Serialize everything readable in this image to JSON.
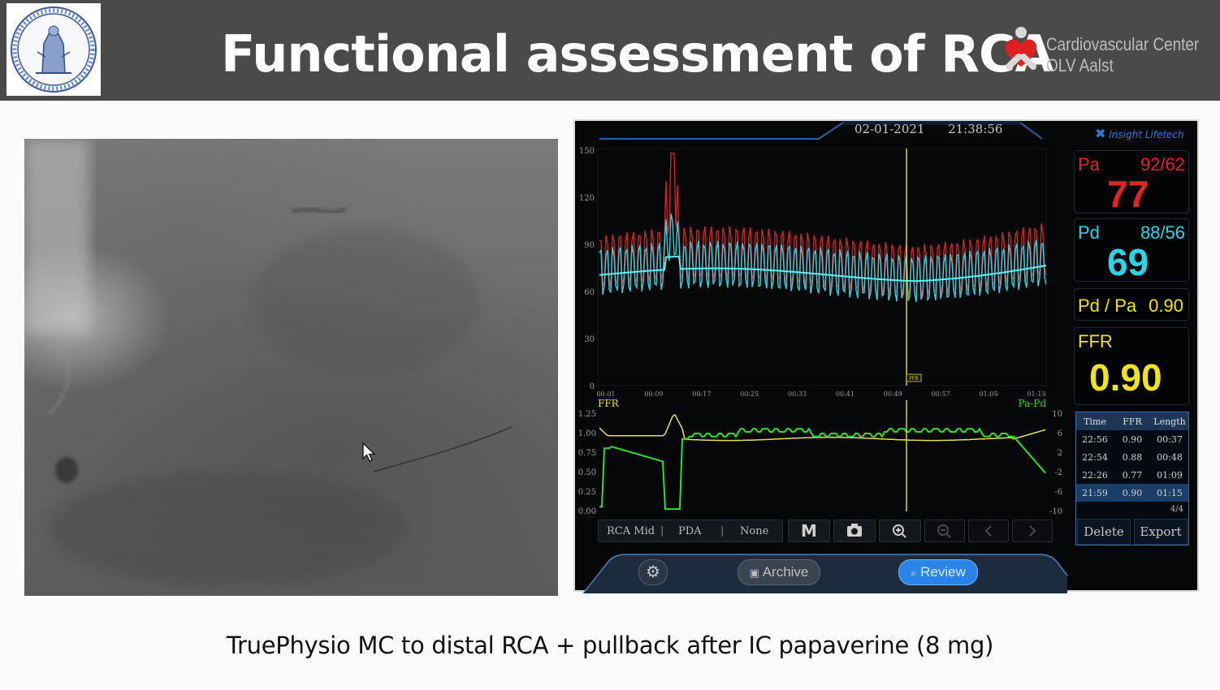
{
  "header": {
    "title": "Functional assessment of RCA",
    "brand_line1": "Cardiovascular Center",
    "brand_line2": "OLV Aalst"
  },
  "monitor": {
    "date": "02-01-2021",
    "time": "21:38:56",
    "vendor": "Insight Lifetech",
    "pa": {
      "label": "Pa",
      "systolic_diastolic": "92/62",
      "mean": "77",
      "color": "#e02424"
    },
    "pd": {
      "label": "Pd",
      "systolic_diastolic": "88/56",
      "mean": "69",
      "color": "#28d6e8"
    },
    "ratio": {
      "label": "Pd / Pa",
      "value": "0.90",
      "color": "#f2e21a"
    },
    "ffr": {
      "label": "FFR",
      "value": "0.90",
      "color": "#f2e21a"
    },
    "pressure_chart": {
      "y_ticks": [
        "150",
        "120",
        "90",
        "60",
        "30",
        "0"
      ],
      "x_ticks": [
        "00:01",
        "00:09",
        "00:17",
        "00:25",
        "00:33",
        "00:41",
        "00:49",
        "00:57",
        "01:05",
        "01:13"
      ],
      "marker_label": "FFR"
    },
    "ffr_chart": {
      "left_label": "FFR",
      "right_label": "Pa-Pd",
      "left_ticks": [
        "1.25",
        "1.00",
        "0.75",
        "0.50",
        "0.25",
        "0.00"
      ],
      "right_ticks": [
        "10",
        "6",
        "2",
        "-2",
        "-6",
        "-10"
      ]
    },
    "controls": {
      "seg1": "RCA Mid",
      "seg2": "PDA",
      "seg3": "None",
      "mark": "M"
    },
    "table": {
      "headers": [
        "Time",
        "FFR",
        "Length"
      ],
      "rows": [
        [
          "22:56",
          "0.90",
          "00:37"
        ],
        [
          "22:54",
          "0.88",
          "00:48"
        ],
        [
          "22:26",
          "0.77",
          "01:09"
        ],
        [
          "21:59",
          "0.90",
          "01:15"
        ]
      ],
      "page": "4/4",
      "delete": "Delete",
      "export": "Export"
    },
    "nav": {
      "archive": "Archive",
      "review": "Review"
    }
  },
  "caption": "TruePhysio MC to distal RCA + pullback after IC papaverine (8 mg)"
}
